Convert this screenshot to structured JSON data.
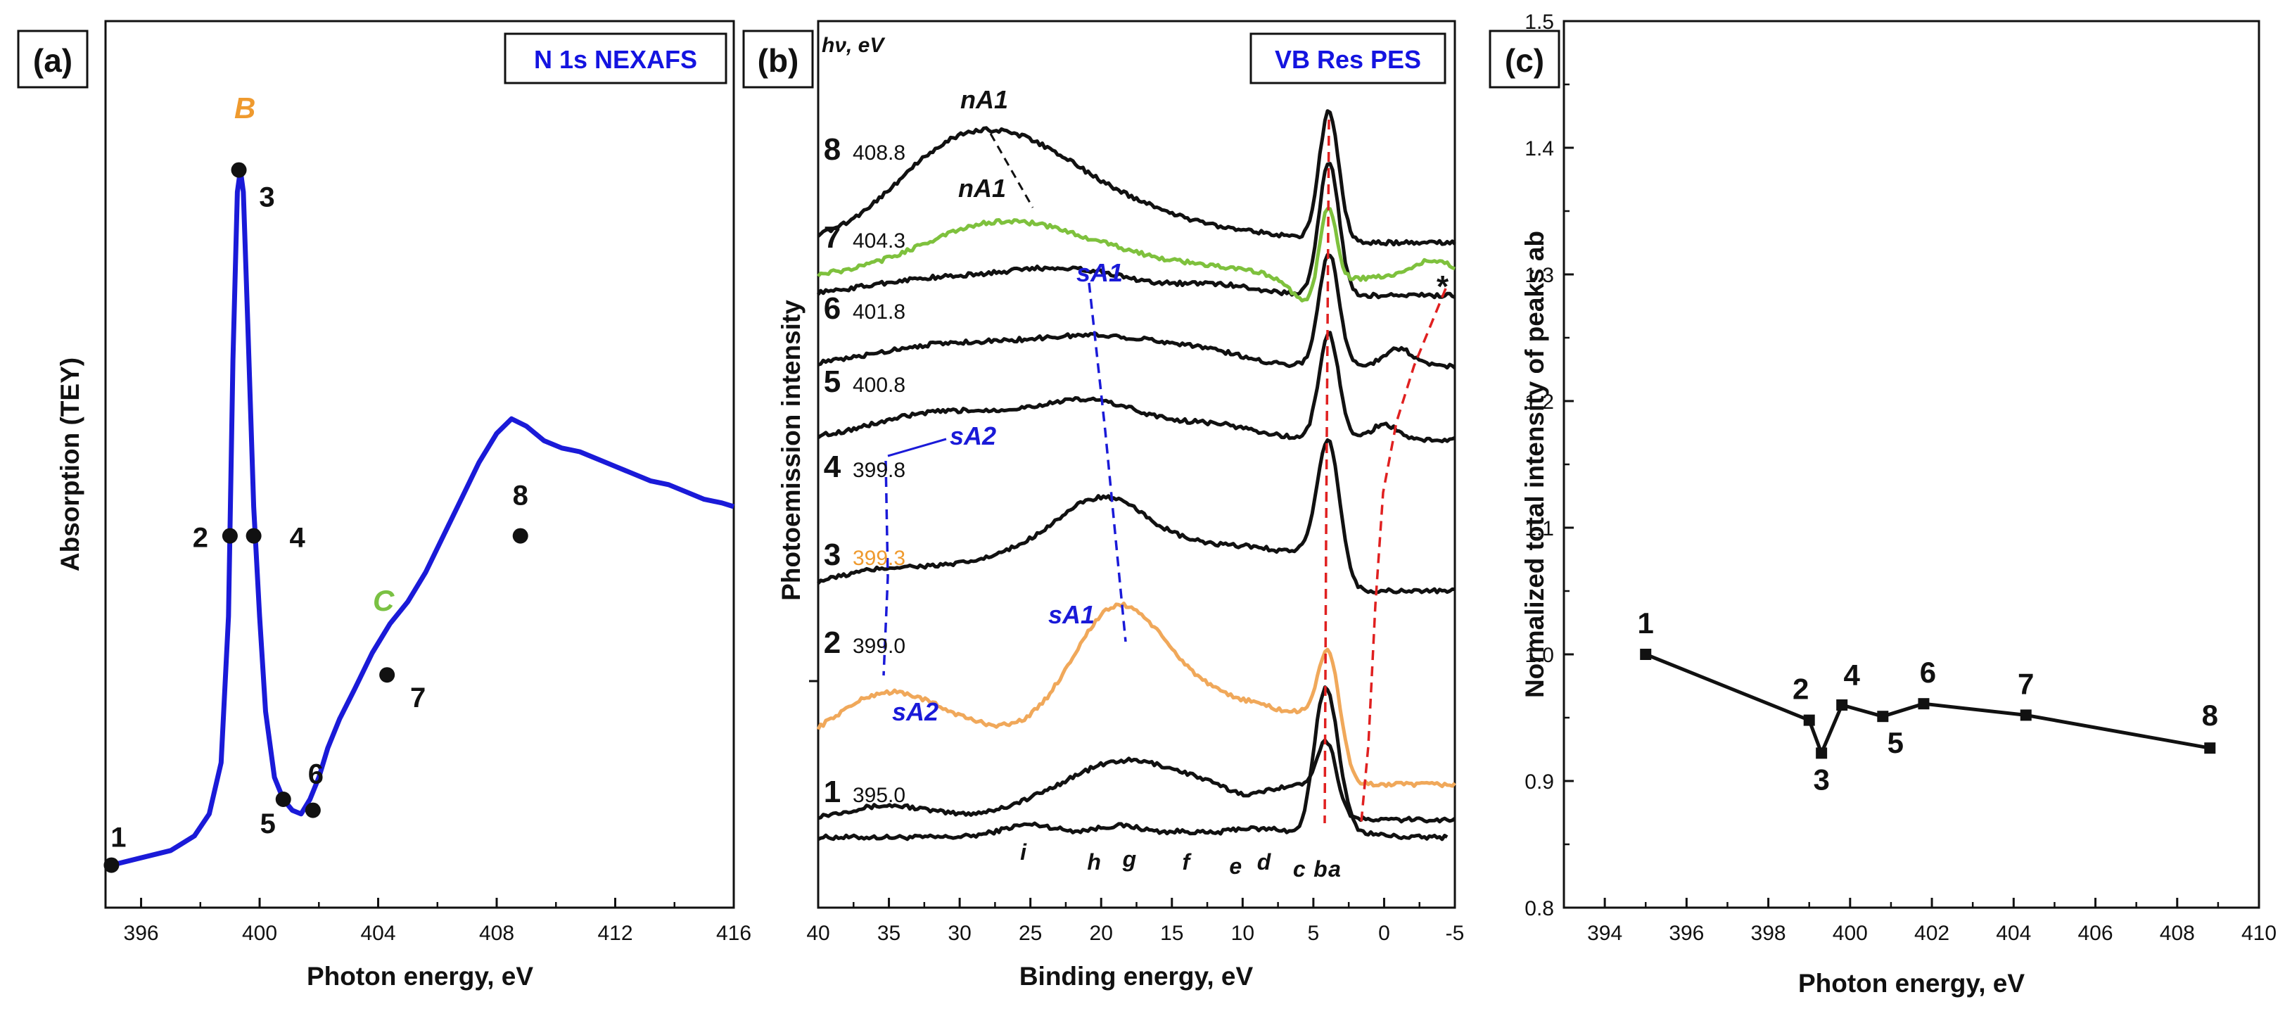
{
  "panels": [
    {
      "letter": "(a)",
      "tag": "N 1s NEXAFS"
    },
    {
      "letter": "(b)",
      "tag": "VB Res PES"
    },
    {
      "letter": "(c)",
      "tag": ""
    }
  ],
  "colors": {
    "blue": "#1414e0",
    "orange": "#ef9a2e",
    "green": "#7ac143",
    "red": "#e02020",
    "black": "#111111",
    "spectrum_orange": "#f0a85a",
    "spectrum_green": "#7ec13d"
  },
  "chart_data": [
    {
      "id": "a",
      "type": "line",
      "title": "N 1s NEXAFS",
      "xlabel": "Photon energy, eV",
      "ylabel": "Absorption (TEY)",
      "xlim": [
        394.8,
        416
      ],
      "ylim": [
        0,
        1
      ],
      "xticks": [
        396,
        400,
        404,
        408,
        412,
        416
      ],
      "x": [
        394.8,
        395.0,
        396.0,
        397.0,
        397.8,
        398.3,
        398.7,
        398.95,
        399.1,
        399.25,
        399.35,
        399.45,
        399.6,
        399.8,
        400.0,
        400.2,
        400.5,
        400.8,
        401.1,
        401.4,
        401.7,
        402.0,
        402.3,
        402.7,
        403.2,
        403.8,
        404.4,
        405.0,
        405.6,
        406.2,
        406.8,
        407.4,
        408.0,
        408.5,
        409.0,
        409.6,
        410.2,
        410.8,
        411.4,
        412.0,
        412.6,
        413.2,
        413.8,
        414.4,
        415.0,
        415.6,
        416.0
      ],
      "y": [
        0.005,
        0.01,
        0.02,
        0.03,
        0.05,
        0.08,
        0.15,
        0.35,
        0.7,
        0.93,
        0.96,
        0.93,
        0.75,
        0.5,
        0.35,
        0.22,
        0.13,
        0.1,
        0.085,
        0.08,
        0.1,
        0.13,
        0.17,
        0.21,
        0.25,
        0.3,
        0.34,
        0.37,
        0.41,
        0.46,
        0.51,
        0.56,
        0.6,
        0.62,
        0.61,
        0.59,
        0.58,
        0.575,
        0.565,
        0.555,
        0.545,
        0.535,
        0.53,
        0.52,
        0.51,
        0.505,
        0.5
      ],
      "points": [
        {
          "label": "1",
          "x": 395.0,
          "y": 0.01
        },
        {
          "label": "2",
          "x": 399.0,
          "y": 0.46
        },
        {
          "label": "3",
          "x": 399.3,
          "y": 0.96
        },
        {
          "label": "4",
          "x": 399.8,
          "y": 0.46
        },
        {
          "label": "5",
          "x": 400.8,
          "y": 0.1
        },
        {
          "label": "6",
          "x": 401.8,
          "y": 0.085
        },
        {
          "label": "7",
          "x": 404.3,
          "y": 0.27
        },
        {
          "label": "8",
          "x": 408.8,
          "y": 0.46
        }
      ],
      "annotations": [
        {
          "text": "B"
        },
        {
          "text": "C"
        }
      ]
    },
    {
      "id": "b",
      "type": "line",
      "title": "VB Res PES",
      "xlabel": "Binding energy, eV",
      "ylabel": "Photoemission intensity",
      "xlim": [
        40,
        -5
      ],
      "xticks": [
        40,
        35,
        30,
        25,
        20,
        15,
        10,
        5,
        0,
        -5
      ],
      "header": "hν, eV",
      "series": [
        {
          "name": "1",
          "hv": "395.0"
        },
        {
          "name": "2",
          "hv": "399.0"
        },
        {
          "name": "3",
          "hv": "399.3"
        },
        {
          "name": "4",
          "hv": "399.8"
        },
        {
          "name": "5",
          "hv": "400.8"
        },
        {
          "name": "6",
          "hv": "401.8"
        },
        {
          "name": "7",
          "hv": "404.3"
        },
        {
          "name": "8",
          "hv": "408.8"
        }
      ],
      "peak_letters": [
        "i",
        "h",
        "g",
        "f",
        "e",
        "d",
        "c",
        "b",
        "a"
      ],
      "annotations": [
        "nA1",
        "nA1",
        "sA1",
        "sA2",
        "sA1",
        "sA2",
        "*"
      ]
    },
    {
      "id": "c",
      "type": "line",
      "xlabel": "Photon energy, eV",
      "ylabel": "Normalized total intensity of peaks ab",
      "xlim": [
        393,
        410
      ],
      "ylim": [
        0.8,
        1.5
      ],
      "xticks": [
        394,
        396,
        398,
        400,
        402,
        404,
        406,
        408,
        410
      ],
      "yticks": [
        0.8,
        0.9,
        1.0,
        1.1,
        1.2,
        1.3,
        1.4,
        1.5
      ],
      "x": [
        395.0,
        399.0,
        399.3,
        399.8,
        400.8,
        401.8,
        404.3,
        408.8
      ],
      "y": [
        1.0,
        0.948,
        0.922,
        0.96,
        0.951,
        0.961,
        0.952,
        0.926
      ],
      "point_labels": [
        "1",
        "2",
        "3",
        "4",
        "5",
        "6",
        "7",
        "8"
      ]
    }
  ]
}
